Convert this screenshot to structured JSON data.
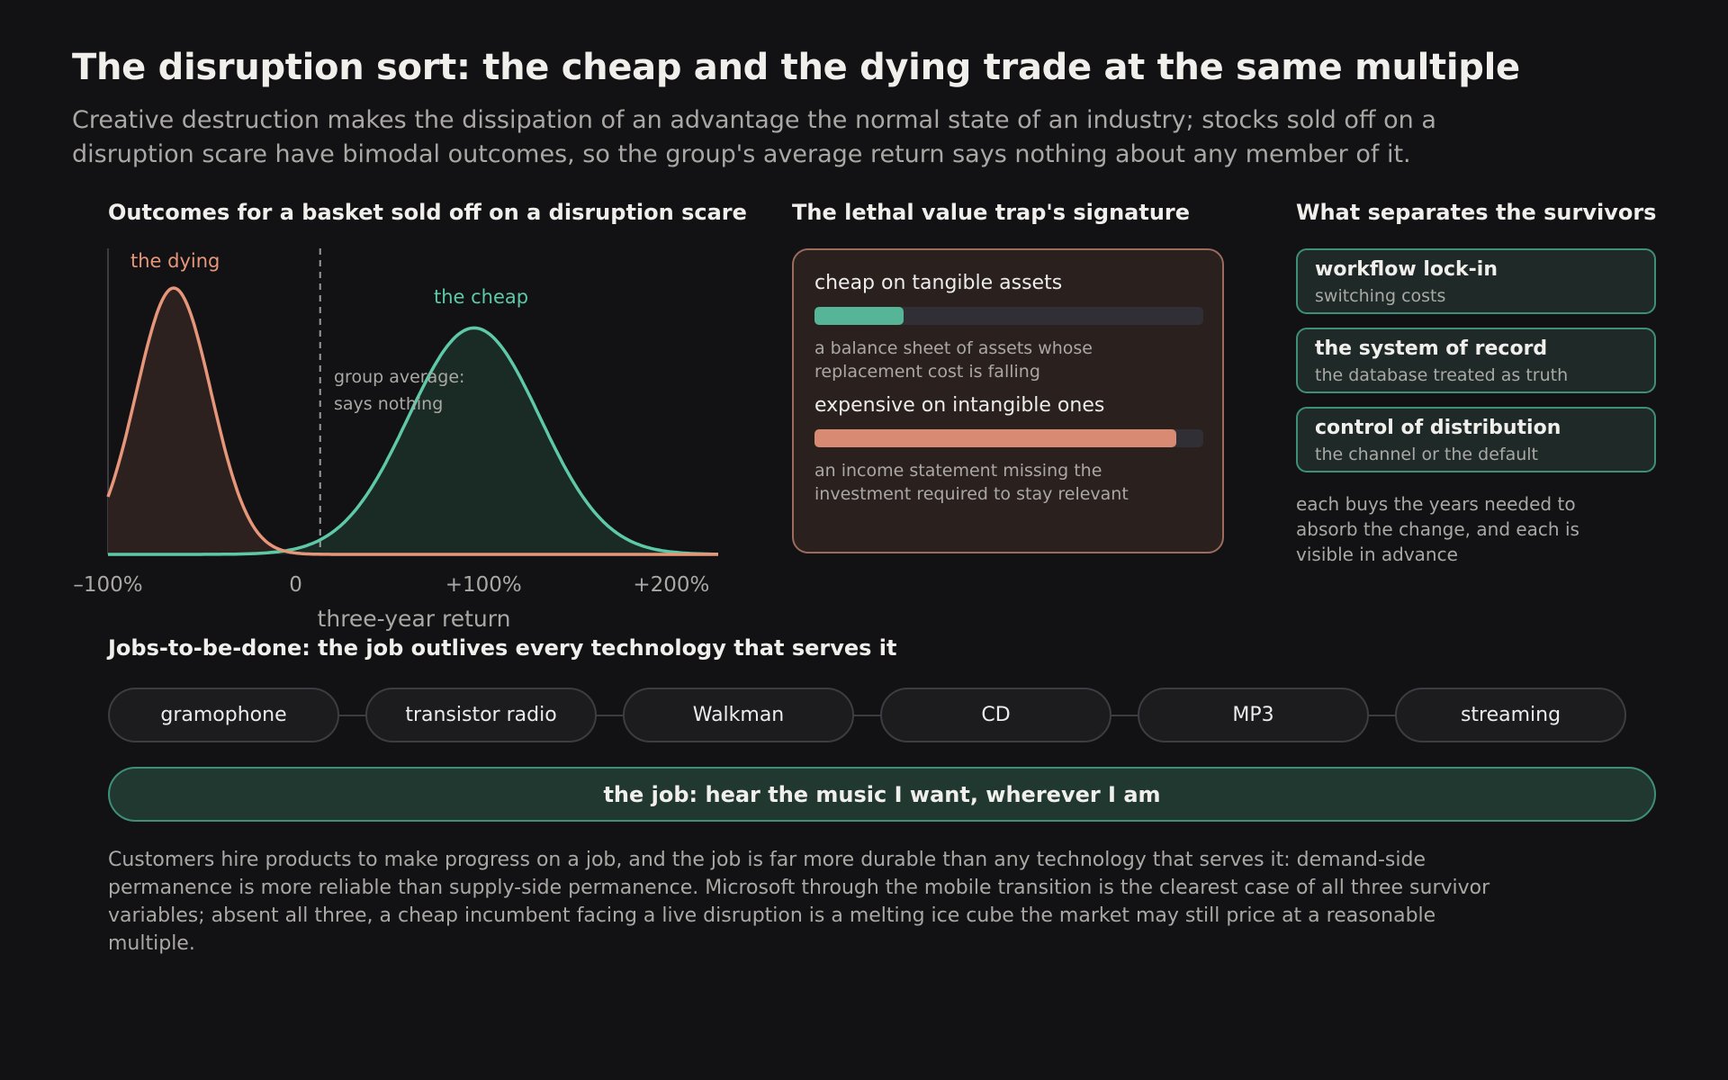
{
  "title": "The disruption sort: the cheap and the dying trade at the same multiple",
  "subtitle": "Creative destruction makes the dissipation of an advantage the normal state of an industry; stocks sold off on a disruption scare have bimodal outcomes, so the group's average return says nothing about any member of it.",
  "colors": {
    "dying": "#e8967a",
    "cheap": "#5ec9a6",
    "background": "#121214",
    "muted_text": "#a9a8a4"
  },
  "distribution": {
    "section_title": "Outcomes for a basket sold off on a disruption scare",
    "xlabel": "three-year return",
    "xticks": [
      "–100%",
      "0",
      "+100%",
      "+200%"
    ],
    "dying_label": "the dying",
    "cheap_label": "the cheap",
    "average_label_line1": "group average:",
    "average_label_line2": "says nothing"
  },
  "chart_data": {
    "type": "area",
    "xlabel": "three-year return",
    "xlim": [
      -100,
      225
    ],
    "x_unit": "percent",
    "series": [
      {
        "name": "the dying",
        "peak_x": -65,
        "spread": 20,
        "relative_height": 1.0
      },
      {
        "name": "the cheap",
        "peak_x": 95,
        "spread": 35,
        "relative_height": 0.85
      }
    ],
    "reference_line": {
      "label": "group average: says nothing",
      "x": 13,
      "style": "dashed"
    }
  },
  "trap": {
    "section_title": "The lethal value trap's signature",
    "items": [
      {
        "label": "cheap on tangible assets",
        "fraction": 0.23,
        "color": "#55b596",
        "note": "a balance sheet of assets whose replacement cost is falling"
      },
      {
        "label": "expensive on intangible ones",
        "fraction": 0.93,
        "color": "#d88a72",
        "note": "an income statement missing the investment required to stay relevant"
      }
    ]
  },
  "survivors": {
    "section_title": "What separates the survivors",
    "items": [
      {
        "title": "workflow lock-in",
        "subtitle": "switching costs"
      },
      {
        "title": "the system of record",
        "subtitle": "the database treated as truth"
      },
      {
        "title": "control of distribution",
        "subtitle": "the channel or the default"
      }
    ],
    "note": "each buys the years needed to absorb the change, and each is visible in advance"
  },
  "jobs": {
    "section_title": "Jobs-to-be-done: the job outlives every technology that serves it",
    "technologies": [
      "gramophone",
      "transistor radio",
      "Walkman",
      "CD",
      "MP3",
      "streaming"
    ],
    "job": "the job: hear the music I want, wherever I am",
    "footer": "Customers hire products to make progress on a job, and the job is far more durable than any technology that serves it: demand-side permanence is more reliable than supply-side permanence. Microsoft through the mobile transition is the clearest case of all three survivor variables; absent all three, a cheap incumbent facing a live disruption is a melting ice cube the market may still price at a reasonable multiple."
  }
}
